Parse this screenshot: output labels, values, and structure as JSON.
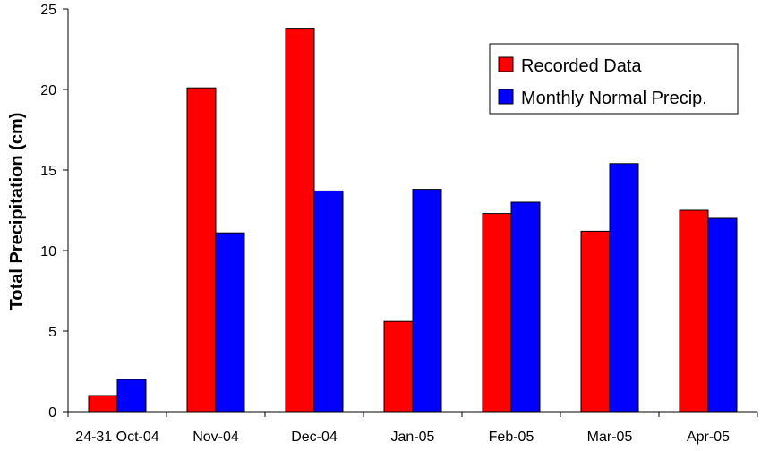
{
  "chart_data": {
    "type": "bar",
    "title": "",
    "xlabel": "",
    "ylabel": "Total Precipitation (cm)",
    "ylim": [
      0,
      25
    ],
    "yticks": [
      0,
      5,
      10,
      15,
      20,
      25
    ],
    "grid": false,
    "legend_position": "top-right",
    "categories": [
      "24-31 Oct-04",
      "Nov-04",
      "Dec-04",
      "Jan-05",
      "Feb-05",
      "Mar-05",
      "Apr-05"
    ],
    "series": [
      {
        "name": "Recorded Data",
        "color": "#ff0000",
        "values": [
          1.0,
          20.1,
          23.8,
          5.6,
          12.3,
          11.2,
          12.5
        ]
      },
      {
        "name": "Monthly Normal Precip.",
        "color": "#0000ff",
        "values": [
          2.0,
          11.1,
          13.7,
          13.8,
          13.0,
          15.4,
          12.0
        ]
      }
    ]
  }
}
